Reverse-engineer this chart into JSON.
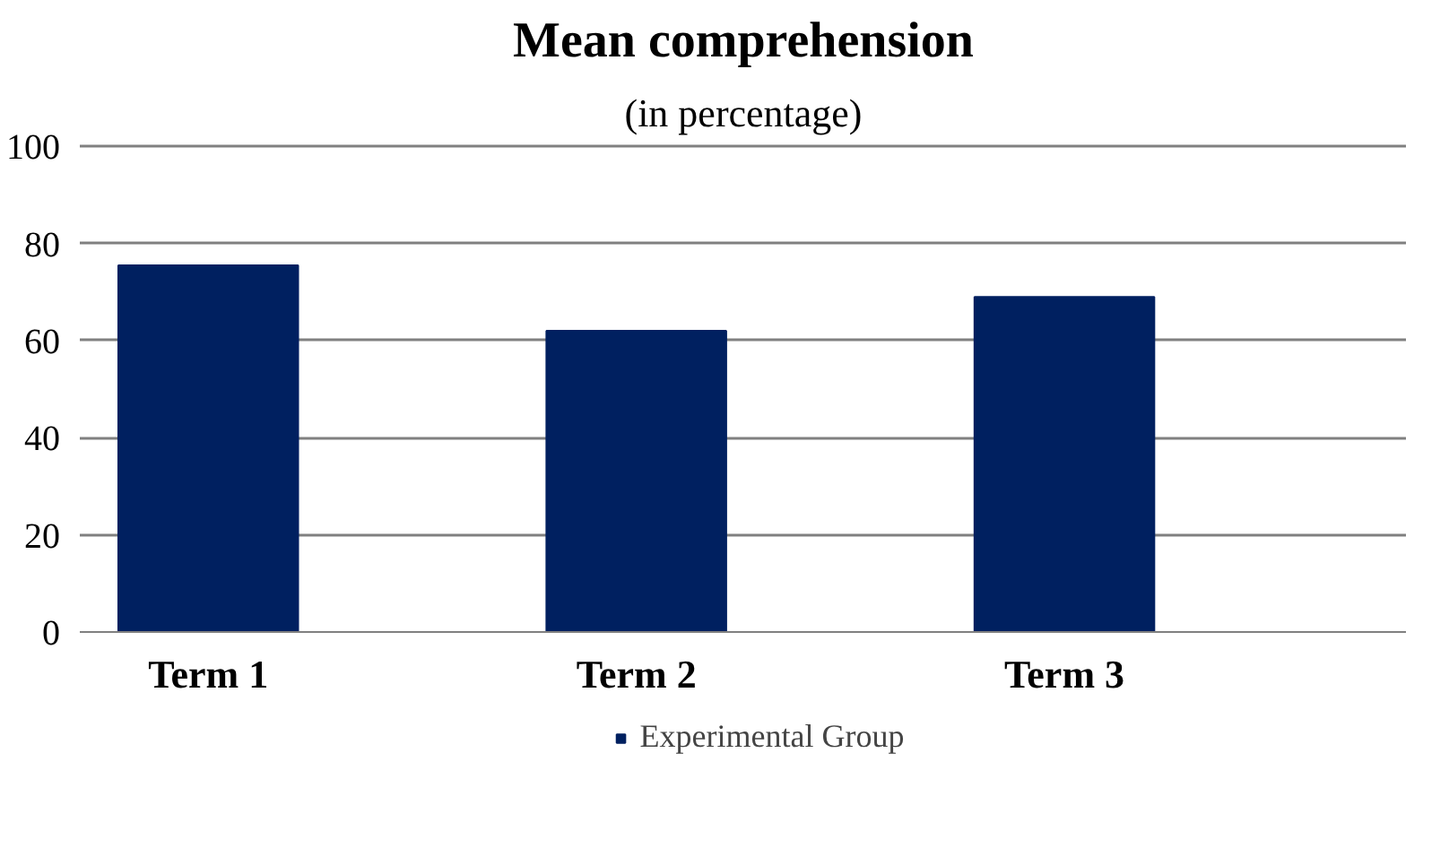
{
  "chart_data": {
    "type": "bar",
    "title": "Mean comprehension",
    "subtitle": "(in percentage)",
    "categories": [
      "Term 1",
      "Term 2",
      "Term 3"
    ],
    "series": [
      {
        "name": "Experimental Group",
        "color": "#002060",
        "values": [
          75.5,
          62,
          69
        ]
      }
    ],
    "ylim": [
      0,
      100
    ],
    "yticks": [
      0,
      20,
      40,
      60,
      80,
      100
    ],
    "grid": "y",
    "legend": "bottom"
  }
}
